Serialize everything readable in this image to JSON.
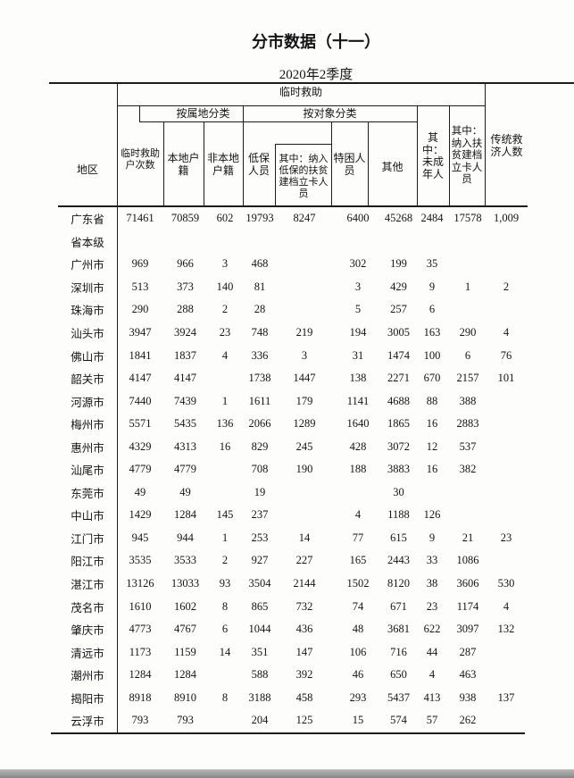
{
  "page": {
    "title": "分市数据（十一）",
    "subtitle": "2020年2季度"
  },
  "table": {
    "header": {
      "region": "地区",
      "group_temporary": "临时救助",
      "households": "临时救助\n户次数",
      "by_locality": "按属地分类",
      "local_registered": "本地户\n籍",
      "nonlocal_registered": "非本地\n户籍",
      "by_target": "按对象分类",
      "dibao": "低保\n人员",
      "dibao_poverty_card": "其中：纳入\n低保的扶贫\n建档立卡人\n员",
      "tekun": "特困人\n员",
      "other": "其他",
      "minors": "其\n中：\n未成\n年人",
      "poverty_card": "其中：\n纳入扶\n贫建档\n立卡人\n员",
      "traditional": "传统救\n济人数"
    },
    "rows": [
      {
        "region": "广东省",
        "values": [
          "71461",
          "70859",
          "602",
          "19793",
          "8247",
          "6400",
          "45268",
          "2484",
          "17578",
          "1,009"
        ]
      },
      {
        "region": "省本级",
        "values": [
          "",
          "",
          "",
          "",
          "",
          "",
          "",
          "",
          "",
          ""
        ]
      },
      {
        "region": "广州市",
        "values": [
          "969",
          "966",
          "3",
          "468",
          "",
          "302",
          "199",
          "35",
          "",
          ""
        ]
      },
      {
        "region": "深圳市",
        "values": [
          "513",
          "373",
          "140",
          "81",
          "",
          "3",
          "429",
          "9",
          "1",
          "2"
        ]
      },
      {
        "region": "珠海市",
        "values": [
          "290",
          "288",
          "2",
          "28",
          "",
          "5",
          "257",
          "6",
          "",
          ""
        ]
      },
      {
        "region": "汕头市",
        "values": [
          "3947",
          "3924",
          "23",
          "748",
          "219",
          "194",
          "3005",
          "163",
          "290",
          "4"
        ]
      },
      {
        "region": "佛山市",
        "values": [
          "1841",
          "1837",
          "4",
          "336",
          "3",
          "31",
          "1474",
          "100",
          "6",
          "76"
        ]
      },
      {
        "region": "韶关市",
        "values": [
          "4147",
          "4147",
          "",
          "1738",
          "1447",
          "138",
          "2271",
          "670",
          "2157",
          "101"
        ]
      },
      {
        "region": "河源市",
        "values": [
          "7440",
          "7439",
          "1",
          "1611",
          "179",
          "1141",
          "4688",
          "88",
          "388",
          ""
        ]
      },
      {
        "region": "梅州市",
        "values": [
          "5571",
          "5435",
          "136",
          "2066",
          "1289",
          "1640",
          "1865",
          "16",
          "2883",
          ""
        ]
      },
      {
        "region": "惠州市",
        "values": [
          "4329",
          "4313",
          "16",
          "829",
          "245",
          "428",
          "3072",
          "12",
          "537",
          ""
        ]
      },
      {
        "region": "汕尾市",
        "values": [
          "4779",
          "4779",
          "",
          "708",
          "190",
          "188",
          "3883",
          "16",
          "382",
          ""
        ]
      },
      {
        "region": "东莞市",
        "values": [
          "49",
          "49",
          "",
          "19",
          "",
          "",
          "30",
          "",
          "",
          ""
        ]
      },
      {
        "region": "中山市",
        "values": [
          "1429",
          "1284",
          "145",
          "237",
          "",
          "4",
          "1188",
          "126",
          "",
          ""
        ]
      },
      {
        "region": "江门市",
        "values": [
          "945",
          "944",
          "1",
          "253",
          "14",
          "77",
          "615",
          "9",
          "21",
          "23"
        ]
      },
      {
        "region": "阳江市",
        "values": [
          "3535",
          "3533",
          "2",
          "927",
          "227",
          "165",
          "2443",
          "33",
          "1086",
          ""
        ]
      },
      {
        "region": "湛江市",
        "values": [
          "13126",
          "13033",
          "93",
          "3504",
          "2144",
          "1502",
          "8120",
          "38",
          "3606",
          "530"
        ]
      },
      {
        "region": "茂名市",
        "values": [
          "1610",
          "1602",
          "8",
          "865",
          "732",
          "74",
          "671",
          "23",
          "1174",
          "4"
        ]
      },
      {
        "region": "肇庆市",
        "values": [
          "4773",
          "4767",
          "6",
          "1044",
          "436",
          "48",
          "3681",
          "622",
          "3097",
          "132"
        ]
      },
      {
        "region": "清远市",
        "values": [
          "1173",
          "1159",
          "14",
          "351",
          "147",
          "106",
          "716",
          "44",
          "287",
          ""
        ]
      },
      {
        "region": "潮州市",
        "values": [
          "1284",
          "1284",
          "",
          "588",
          "392",
          "46",
          "650",
          "4",
          "463",
          ""
        ]
      },
      {
        "region": "揭阳市",
        "values": [
          "8918",
          "8910",
          "8",
          "3188",
          "458",
          "293",
          "5437",
          "413",
          "938",
          "137"
        ]
      },
      {
        "region": "云浮市",
        "values": [
          "793",
          "793",
          "",
          "204",
          "125",
          "15",
          "574",
          "57",
          "262",
          ""
        ]
      }
    ]
  }
}
